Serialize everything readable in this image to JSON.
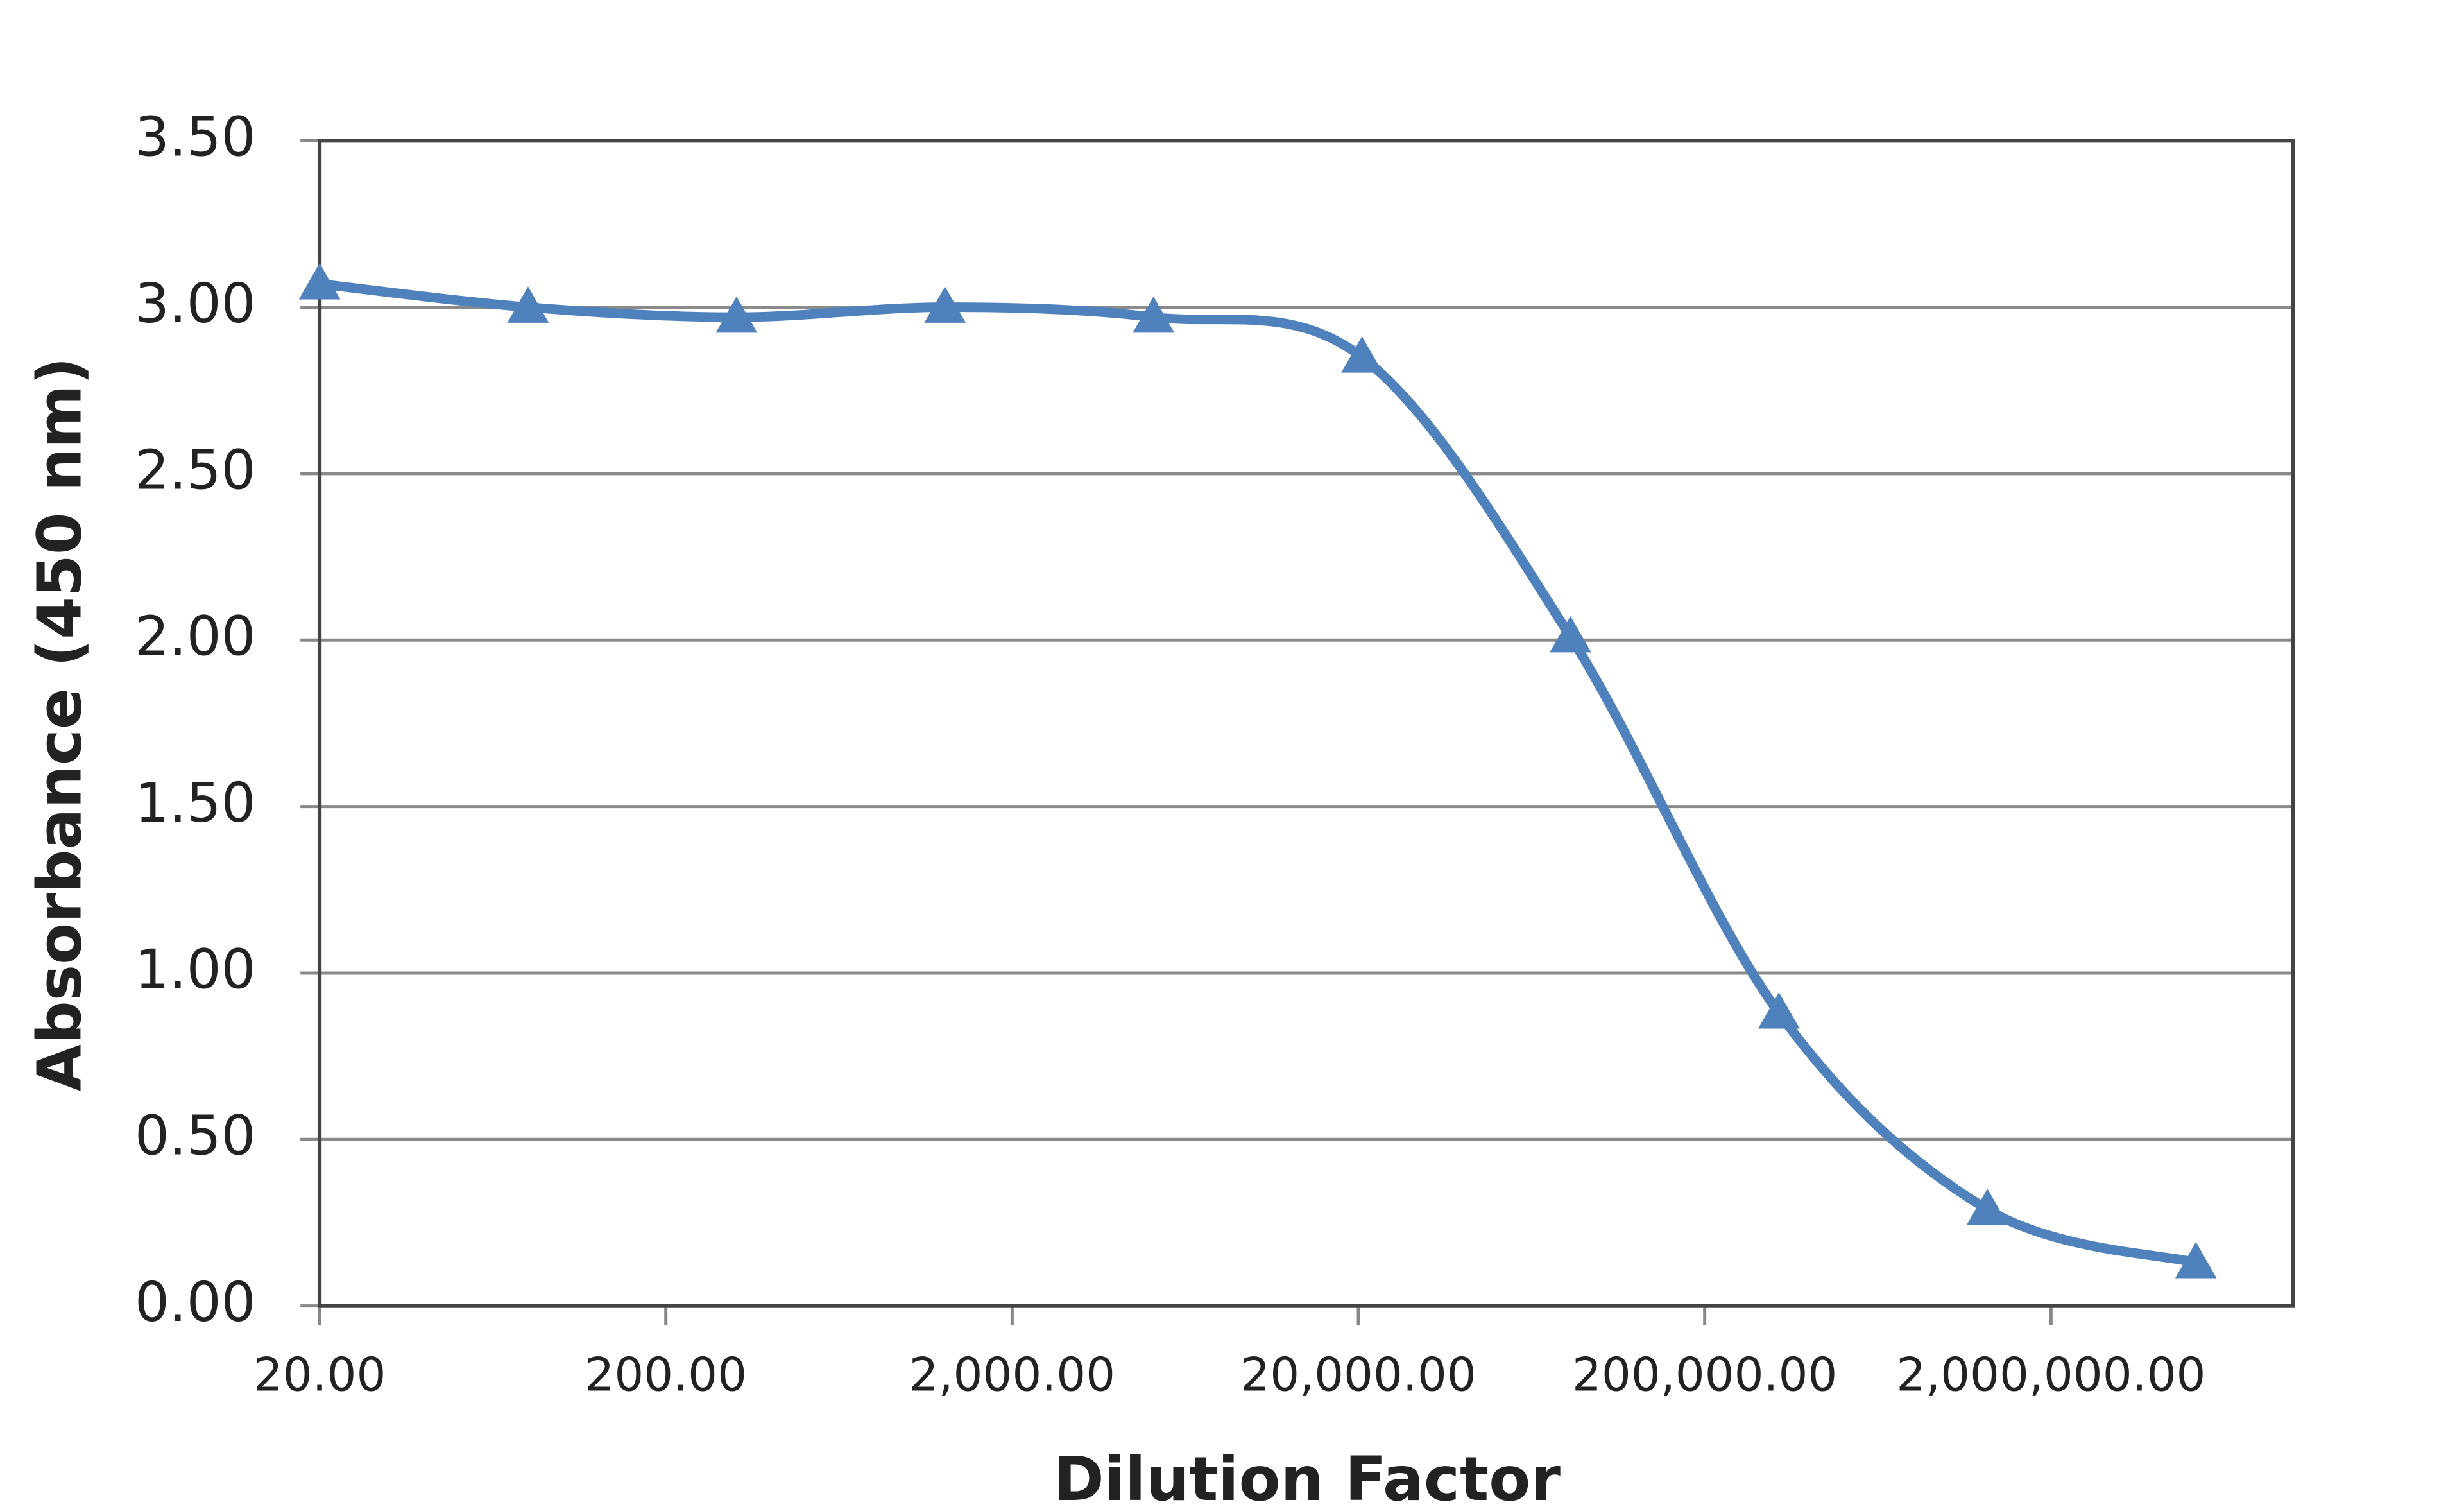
{
  "chart_data": {
    "type": "line",
    "x_label": "Dilution Factor",
    "y_label": "Absorbance (450 nm)",
    "x": [
      20,
      80,
      320,
      1280,
      5120,
      20480,
      81920,
      327680,
      1310720,
      5242880
    ],
    "values": [
      3.07,
      3.0,
      2.97,
      3.0,
      2.97,
      2.85,
      2.01,
      0.88,
      0.29,
      0.13
    ],
    "color": "#4f81bd",
    "marker": "triangle",
    "smooth": true,
    "xscale": "log",
    "xlim": [
      20,
      10000000
    ],
    "xticks": [
      {
        "value": 20,
        "label": "20.00"
      },
      {
        "value": 200,
        "label": "200.00"
      },
      {
        "value": 2000,
        "label": "2,000.00"
      },
      {
        "value": 20000,
        "label": "20,000.00"
      },
      {
        "value": 200000,
        "label": "200,000.00"
      },
      {
        "value": 2000000,
        "label": "2,000,000.00"
      }
    ],
    "ylim": [
      0,
      3.5
    ],
    "yticks": [
      {
        "value": 0,
        "label": "0.00"
      },
      {
        "value": 0.5,
        "label": "0.50"
      },
      {
        "value": 1,
        "label": "1.00"
      },
      {
        "value": 1.5,
        "label": "1.50"
      },
      {
        "value": 2,
        "label": "2.00"
      },
      {
        "value": 2.5,
        "label": "2.50"
      },
      {
        "value": 3,
        "label": "3.00"
      },
      {
        "value": 3.5,
        "label": "3.50"
      }
    ],
    "grid": true
  }
}
